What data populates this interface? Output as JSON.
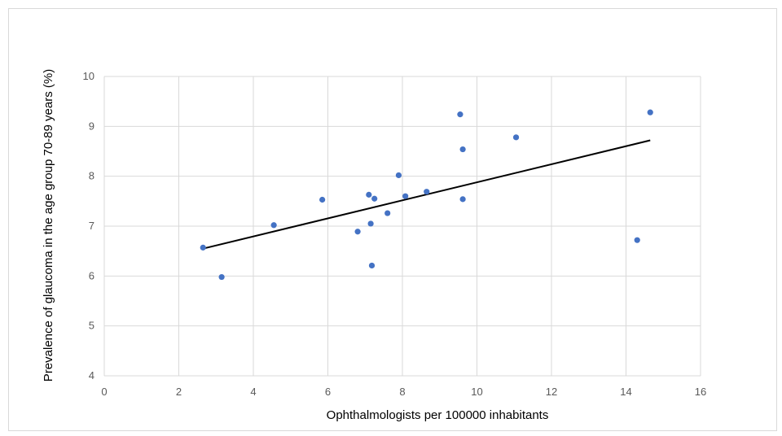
{
  "chart_data": {
    "type": "scatter",
    "xlabel": "Ophthalmologists per 100000 inhabitants",
    "ylabel": "Prevalence of glaucoma in the age group 70-89 years (%)",
    "xlim": [
      0,
      16
    ],
    "ylim": [
      4,
      10
    ],
    "x_ticks": [
      "0",
      "2",
      "4",
      "6",
      "8",
      "10",
      "12",
      "14",
      "16"
    ],
    "y_ticks": [
      "4",
      "5",
      "6",
      "7",
      "8",
      "9",
      "10"
    ],
    "grid": true,
    "points": [
      {
        "x": 2.65,
        "y": 6.57
      },
      {
        "x": 3.15,
        "y": 5.98
      },
      {
        "x": 4.55,
        "y": 7.02
      },
      {
        "x": 5.85,
        "y": 7.53
      },
      {
        "x": 6.8,
        "y": 6.89
      },
      {
        "x": 7.1,
        "y": 7.63
      },
      {
        "x": 7.15,
        "y": 7.05
      },
      {
        "x": 7.18,
        "y": 6.21
      },
      {
        "x": 7.25,
        "y": 7.55
      },
      {
        "x": 7.6,
        "y": 7.26
      },
      {
        "x": 7.9,
        "y": 8.02
      },
      {
        "x": 8.08,
        "y": 7.6
      },
      {
        "x": 8.65,
        "y": 7.69
      },
      {
        "x": 9.55,
        "y": 9.24
      },
      {
        "x": 9.62,
        "y": 8.54
      },
      {
        "x": 9.62,
        "y": 7.54
      },
      {
        "x": 11.05,
        "y": 8.78
      },
      {
        "x": 14.3,
        "y": 6.72
      },
      {
        "x": 14.65,
        "y": 9.28
      }
    ],
    "trendline": {
      "x": [
        2.6,
        14.65
      ],
      "y": [
        6.54,
        8.72
      ]
    },
    "colors": {
      "points": "#4472c4",
      "trendline": "#000000",
      "grid": "#d9d9d9"
    }
  }
}
